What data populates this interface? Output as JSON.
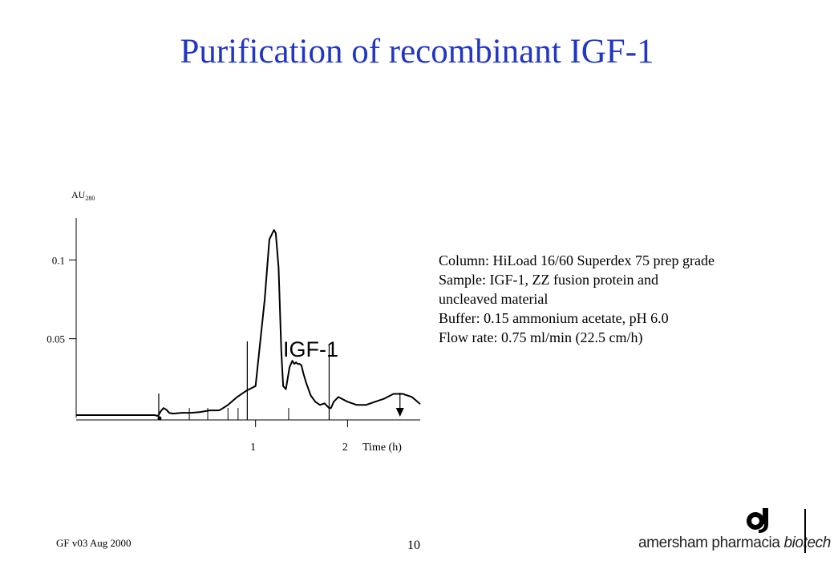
{
  "slide": {
    "title": "Purification of recombinant IGF-1",
    "footer_left": "GF v03 Aug 2000",
    "page_number": "10",
    "logo": {
      "brand": "amersham pharmacia",
      "brand_suffix": "biotech"
    },
    "info": [
      "Column: HiLoad 16/60 Superdex 75 prep grade",
      "Sample: IGF-1, ZZ fusion protein and",
      "uncleaved material",
      "Buffer: 0.15 ammonium acetate, pH 6.0",
      "Flow rate: 0.75 ml/min (22.5 cm/h)"
    ]
  },
  "chart_data": {
    "type": "line",
    "ylabel_main": "AU",
    "ylabel_sub": "280",
    "xlabel": "Time (h)",
    "y_ticks": [
      {
        "value": 0.1,
        "label": "0.1"
      },
      {
        "value": 0.05,
        "label": "0.05"
      }
    ],
    "x_ticks": [
      {
        "value": 1,
        "label": "1"
      },
      {
        "value": 2,
        "label": "2"
      }
    ],
    "xlim": [
      -0.95,
      2.79
    ],
    "ylim": [
      0,
      0.12
    ],
    "annotation": {
      "text": "IGF-1",
      "x": 1.73,
      "y": 0.047
    },
    "fraction_markers": [
      0.91,
      1.8
    ],
    "fraction_lines": [
      0.28,
      0.48,
      0.7,
      0.81,
      1.36
    ],
    "series": [
      {
        "x": [
          -0.95,
          -0.1,
          -0.06,
          -0.03,
          0.0,
          0.03,
          0.06,
          0.1,
          0.2,
          0.3,
          0.4,
          0.5,
          0.6,
          0.62,
          0.7,
          0.8,
          0.9,
          1.0,
          1.1,
          1.15,
          1.2,
          1.22,
          1.25,
          1.28,
          1.3,
          1.33,
          1.37,
          1.4,
          1.42,
          1.44,
          1.46,
          1.48,
          1.5,
          1.52,
          1.55,
          1.6,
          1.65,
          1.7,
          1.75,
          1.8,
          1.82,
          1.85,
          1.9,
          2.0,
          2.1,
          2.2,
          2.3,
          2.4,
          2.5,
          2.6,
          2.7,
          2.79
        ],
        "y": [
          0.0015,
          0.0015,
          0.001,
          0.004,
          0.006,
          0.005,
          0.003,
          0.0025,
          0.003,
          0.003,
          0.0035,
          0.0045,
          0.0045,
          0.005,
          0.008,
          0.013,
          0.017,
          0.02,
          0.075,
          0.113,
          0.119,
          0.117,
          0.095,
          0.042,
          0.02,
          0.018,
          0.032,
          0.036,
          0.034,
          0.035,
          0.034,
          0.034,
          0.033,
          0.028,
          0.022,
          0.014,
          0.01,
          0.008,
          0.009,
          0.006,
          0.006,
          0.01,
          0.013,
          0.01,
          0.008,
          0.008,
          0.01,
          0.012,
          0.015,
          0.015,
          0.013,
          0.0085
        ]
      }
    ]
  }
}
